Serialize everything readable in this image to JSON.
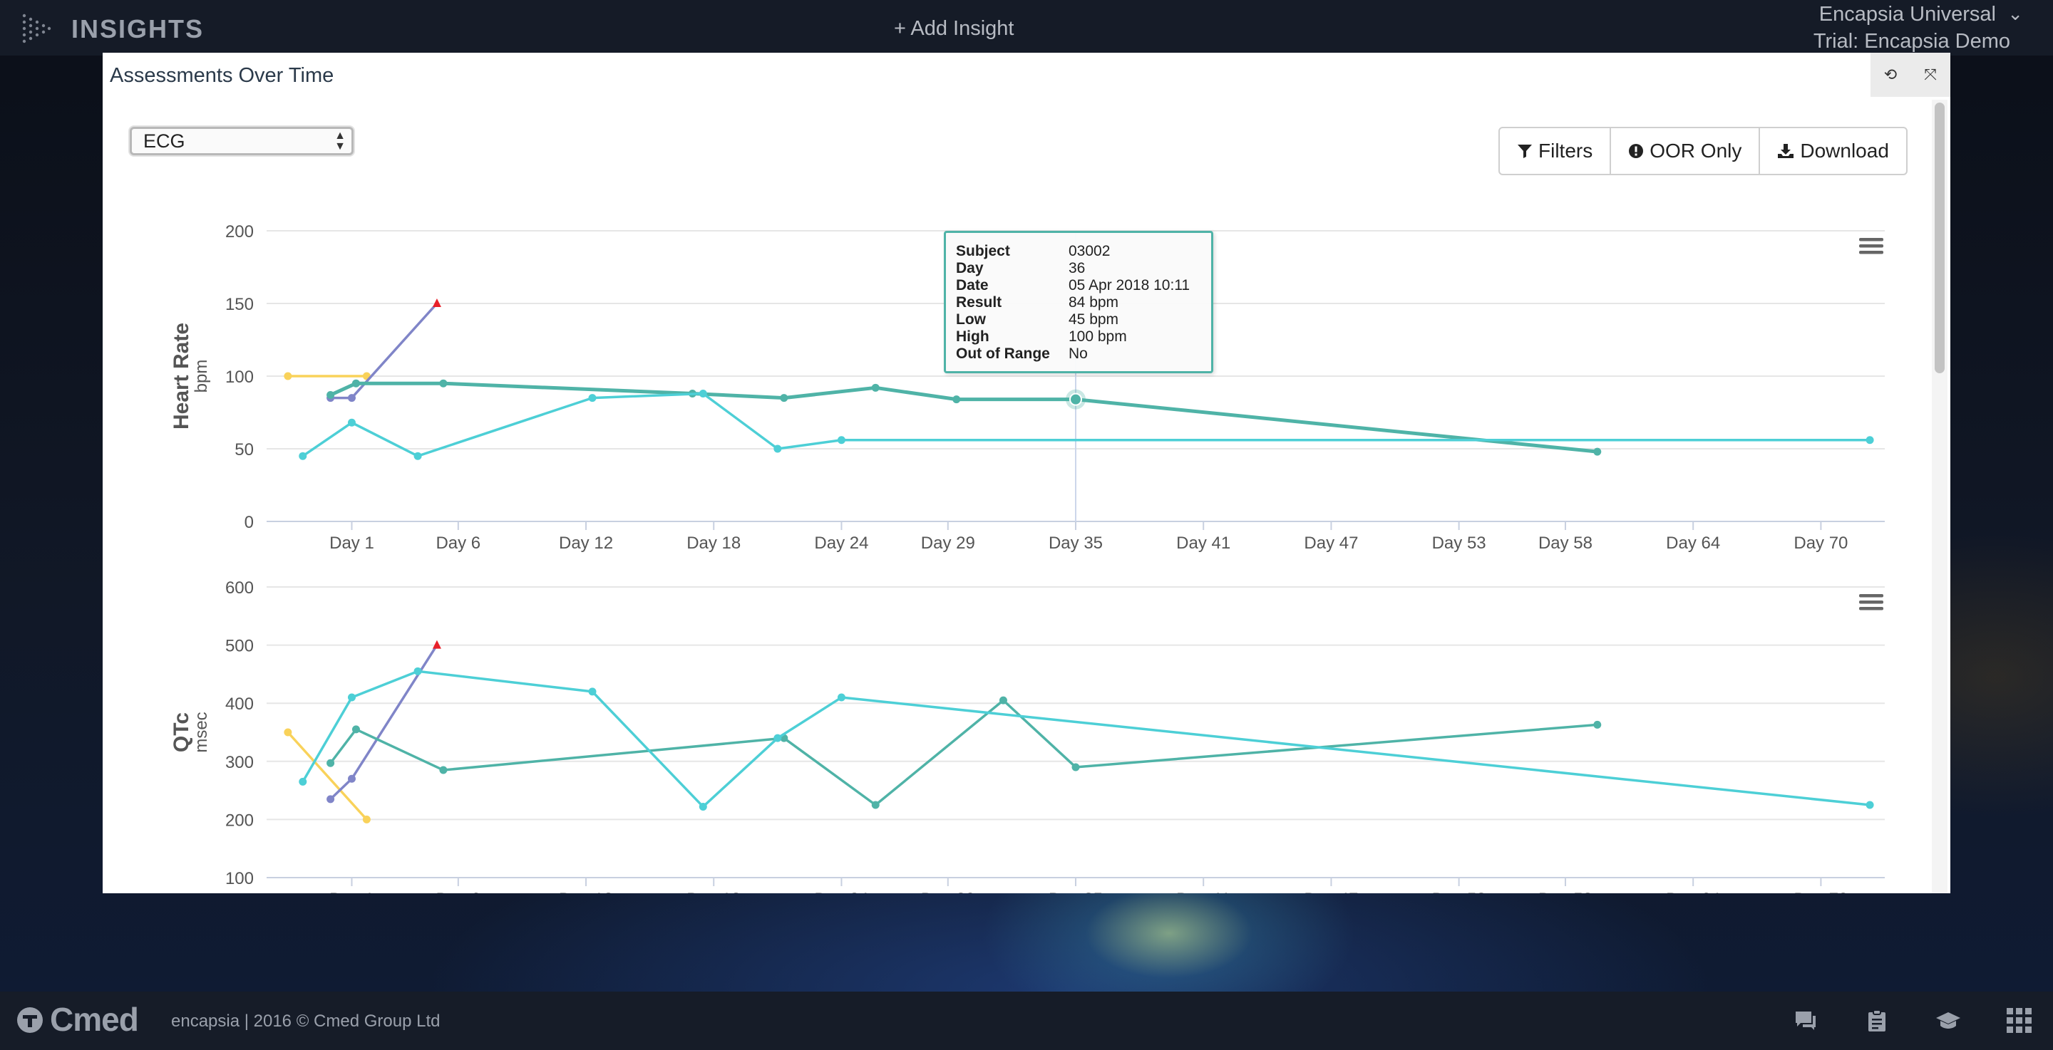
{
  "header": {
    "app_title": "INSIGHTS",
    "add_insight_label": "+ Add Insight",
    "org_name": "Encapsia Universal",
    "trial_name": "Trial: Encapsia Demo",
    "org_chevron": "⌄"
  },
  "panel": {
    "title": "Assessments Over Time",
    "assessment_select": {
      "selected": "ECG"
    },
    "buttons": {
      "filters": "Filters",
      "oor_only": "OOR Only",
      "download": "Download"
    },
    "tools": {
      "refresh": "⟲",
      "collapse": "⤧"
    }
  },
  "tooltip": {
    "rows": [
      {
        "key": "Subject",
        "value": "03002"
      },
      {
        "key": "Day",
        "value": "36"
      },
      {
        "key": "Date",
        "value": "05 Apr 2018 10:11"
      },
      {
        "key": "Result",
        "value": "84 bpm"
      },
      {
        "key": "Low",
        "value": "45 bpm"
      },
      {
        "key": "High",
        "value": "100 bpm"
      },
      {
        "key": "Out of Range",
        "value": "No"
      }
    ]
  },
  "chart_data": [
    {
      "type": "line",
      "ylabel": "Heart Rate",
      "yunit": "bpm",
      "ylim": [
        0,
        200
      ],
      "yticks": [
        0,
        50,
        100,
        150,
        200
      ],
      "xticks": [
        {
          "label": "Day 1",
          "day": 1
        },
        {
          "label": "Day 6",
          "day": 6
        },
        {
          "label": "Day 12",
          "day": 12
        },
        {
          "label": "Day 18",
          "day": 18
        },
        {
          "label": "Day 24",
          "day": 24
        },
        {
          "label": "Day 29",
          "day": 29
        },
        {
          "label": "Day 35",
          "day": 35
        },
        {
          "label": "Day 41",
          "day": 41
        },
        {
          "label": "Day 47",
          "day": 47
        },
        {
          "label": "Day 53",
          "day": 53
        },
        {
          "label": "Day 58",
          "day": 58
        },
        {
          "label": "Day 64",
          "day": 64
        },
        {
          "label": "Day 70",
          "day": 70
        }
      ],
      "xlim": [
        -3,
        73
      ],
      "series": [
        {
          "color": "#f9d25a",
          "points": [
            [
              -2,
              100
            ],
            [
              1.7,
              100
            ]
          ]
        },
        {
          "color": "#8085c8",
          "points": [
            [
              0,
              85
            ],
            [
              1,
              85
            ],
            [
              5,
              150
            ]
          ],
          "end_marker": "triangle"
        },
        {
          "color": "#4fb3a7",
          "thick": true,
          "points": [
            [
              0,
              87
            ],
            [
              1.2,
              95
            ],
            [
              5.3,
              95
            ],
            [
              17,
              88
            ],
            [
              21.3,
              85
            ],
            [
              25.6,
              92
            ],
            [
              29.4,
              84
            ],
            [
              35,
              84
            ],
            [
              59.5,
              48
            ]
          ]
        },
        {
          "color": "#4dcfd6",
          "points": [
            [
              -1.3,
              45
            ],
            [
              1,
              68
            ],
            [
              4.1,
              45
            ],
            [
              12.3,
              85
            ],
            [
              17.5,
              88
            ],
            [
              21,
              50
            ],
            [
              24,
              56
            ],
            [
              72.3,
              56
            ]
          ]
        }
      ],
      "highlight": {
        "day": 35,
        "value": 84
      }
    },
    {
      "type": "line",
      "ylabel": "QTc",
      "yunit": "msec",
      "ylim": [
        100,
        600
      ],
      "yticks": [
        100,
        200,
        300,
        400,
        500,
        600
      ],
      "xlim": [
        -3,
        73
      ],
      "series": [
        {
          "color": "#f9d25a",
          "points": [
            [
              -2,
              350
            ],
            [
              1.7,
              200
            ]
          ]
        },
        {
          "color": "#8085c8",
          "points": [
            [
              0,
              235
            ],
            [
              1,
              270
            ],
            [
              5,
              500
            ]
          ],
          "end_marker": "triangle"
        },
        {
          "color": "#4fb3a7",
          "points": [
            [
              0,
              297
            ],
            [
              1.2,
              355
            ],
            [
              5.3,
              285
            ],
            [
              21.3,
              340
            ],
            [
              25.6,
              225
            ],
            [
              31.6,
              405
            ],
            [
              35,
              290
            ],
            [
              59.5,
              363
            ]
          ]
        },
        {
          "color": "#4dcfd6",
          "points": [
            [
              -1.3,
              265
            ],
            [
              1,
              410
            ],
            [
              4.1,
              455
            ],
            [
              12.3,
              420
            ],
            [
              17.5,
              222
            ],
            [
              21,
              340
            ],
            [
              24,
              410
            ],
            [
              72.3,
              225
            ]
          ]
        }
      ]
    }
  ],
  "footer": {
    "brand": "Cmed",
    "copyright": "encapsia | 2016 © Cmed Group Ltd"
  }
}
